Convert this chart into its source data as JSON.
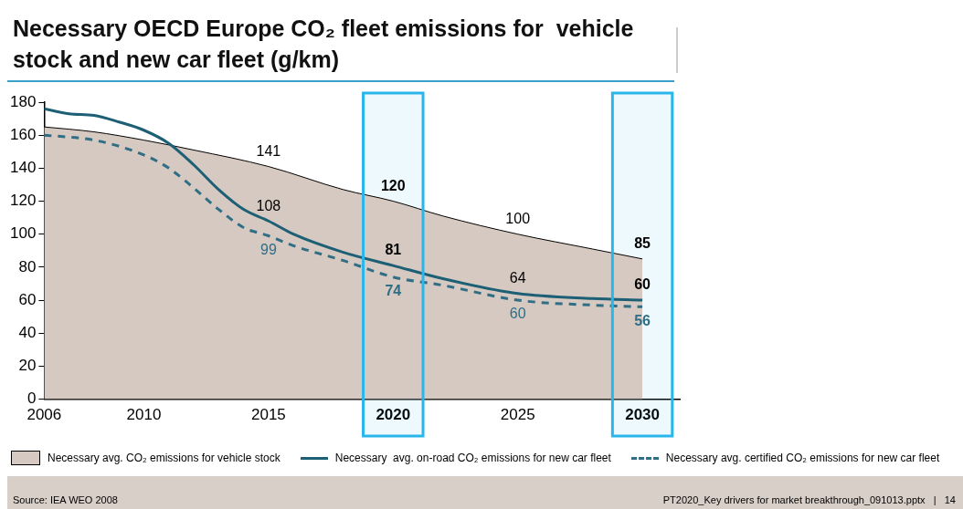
{
  "chart_data": {
    "type": "line",
    "title": "Necessary OECD Europe CO₂ fleet emissions for  vehicle stock and new car fleet (g/km)",
    "xlim": [
      2006,
      2031.5
    ],
    "xticks": [
      2006,
      2010,
      2015,
      2020,
      2025,
      2030
    ],
    "ylim": [
      0,
      180
    ],
    "yticks": [
      0,
      20,
      40,
      60,
      80,
      100,
      120,
      140,
      160,
      180
    ],
    "grid": false,
    "legend": "bottom",
    "marker": "none",
    "series": [
      {
        "name": "Necessary avg. CO₂ emissions for vehicle stock",
        "type": "area",
        "color": "#d5c9c1",
        "line_style": "solid",
        "x": [
          2006,
          2008,
          2010,
          2012,
          2015,
          2018,
          2020,
          2022,
          2025,
          2028,
          2030
        ],
        "values": [
          165,
          162,
          157,
          151,
          141,
          127,
          120,
          111,
          100,
          91,
          85
        ],
        "value_labels": [
          null,
          null,
          null,
          null,
          "141",
          null,
          "120",
          null,
          "100",
          null,
          "85"
        ]
      },
      {
        "name": "Necessary  avg. on-road CO₂ emissions for new car fleet",
        "type": "line",
        "color": "#1d5f74",
        "line_style": "solid",
        "x": [
          2006,
          2007,
          2008,
          2009,
          2010,
          2011,
          2012,
          2013,
          2014,
          2015,
          2016,
          2018,
          2020,
          2022,
          2025,
          2028,
          2030
        ],
        "values": [
          176,
          173,
          172,
          168,
          163,
          155,
          142,
          127,
          115,
          108,
          100,
          89,
          81,
          73,
          64,
          61,
          60
        ],
        "value_labels": [
          null,
          null,
          null,
          null,
          null,
          null,
          null,
          null,
          null,
          "108",
          null,
          null,
          "81",
          null,
          "64",
          null,
          "60"
        ]
      },
      {
        "name": "Necessary avg. certified CO₂ emissions for new car fleet",
        "type": "line",
        "color": "#2f6e84",
        "line_style": "dashed",
        "x": [
          2006,
          2008,
          2010,
          2011,
          2012,
          2013,
          2014,
          2015,
          2016,
          2018,
          2020,
          2022,
          2025,
          2028,
          2030
        ],
        "values": [
          160,
          157,
          148,
          140,
          128,
          115,
          104,
          99,
          93,
          84,
          74,
          69,
          60,
          57,
          56
        ],
        "value_labels": [
          null,
          null,
          null,
          null,
          null,
          null,
          null,
          "99",
          null,
          null,
          "74",
          null,
          "60",
          null,
          "56"
        ]
      }
    ],
    "bands": [
      {
        "axis": "x",
        "from": 2018.8,
        "to": 2021.2,
        "color": "#29b6ea"
      },
      {
        "axis": "x",
        "from": 2028.8,
        "to": 2031.2,
        "color": "#29b6ea"
      }
    ],
    "annotations": [
      "Source: IEA WEO 2008",
      "PT2020_Key drivers for market breakthrough_091013.pptx   |   14"
    ]
  }
}
